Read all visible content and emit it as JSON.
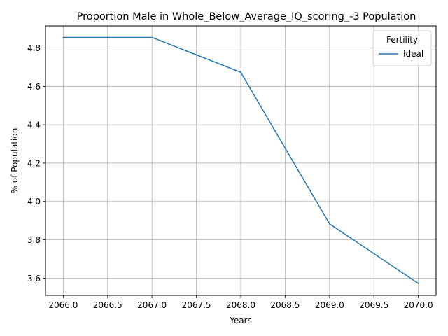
{
  "chart_data": {
    "type": "line",
    "title": "Proportion Male in Whole_Below_Average_IQ_scoring_-3 Population",
    "xlabel": "Years",
    "ylabel": "% of Population",
    "x": [
      2066,
      2067,
      2068,
      2069,
      2070
    ],
    "series": [
      {
        "name": "Ideal",
        "values": [
          4.855,
          4.855,
          4.673,
          3.883,
          3.572
        ],
        "color": "#1f77b4"
      }
    ],
    "xlim": [
      2065.8,
      2070.2
    ],
    "ylim": [
      3.51,
      4.915
    ],
    "xticks": [
      2066.0,
      2066.5,
      2067.0,
      2067.5,
      2068.0,
      2068.5,
      2069.0,
      2069.5,
      2070.0
    ],
    "xtick_labels": [
      "2066.0",
      "2066.5",
      "2067.0",
      "2067.5",
      "2068.0",
      "2068.5",
      "2069.0",
      "2069.5",
      "2070.0"
    ],
    "yticks": [
      3.6,
      3.8,
      4.0,
      4.2,
      4.4,
      4.6,
      4.8
    ],
    "ytick_labels": [
      "3.6",
      "3.8",
      "4.0",
      "4.2",
      "4.4",
      "4.6",
      "4.8"
    ],
    "grid": true,
    "legend": {
      "title": "Fertility",
      "position": "top-right"
    }
  }
}
